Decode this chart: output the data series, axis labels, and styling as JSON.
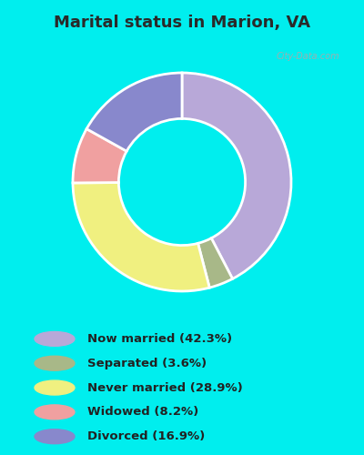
{
  "title": "Marital status in Marion, VA",
  "title_color": "#2a2a2a",
  "bg_cyan": "#00EEEE",
  "bg_chart": "#d4edd8",
  "categories": [
    "Now married",
    "Separated",
    "Never married",
    "Widowed",
    "Divorced"
  ],
  "values": [
    42.3,
    3.6,
    28.9,
    8.2,
    16.9
  ],
  "colors": [
    "#b8a8d8",
    "#a8b888",
    "#f0f080",
    "#f0a0a0",
    "#8888cc"
  ],
  "legend_labels": [
    "Now married (42.3%)",
    "Separated (3.6%)",
    "Never married (28.9%)",
    "Widowed (8.2%)",
    "Divorced (16.9%)"
  ],
  "watermark": "City-Data.com",
  "figsize": [
    4.0,
    5.0
  ],
  "dpi": 100
}
